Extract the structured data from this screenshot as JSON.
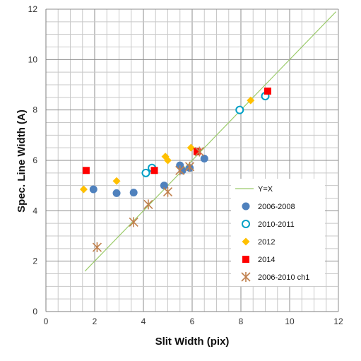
{
  "chart_data": {
    "type": "scatter",
    "title": "",
    "xlabel": "Slit Width (pix)",
    "ylabel": "Spec. Line Width (A)",
    "xlim": [
      0,
      12
    ],
    "ylim": [
      0,
      12
    ],
    "xticks": [
      0,
      2,
      4,
      6,
      8,
      10,
      12
    ],
    "yticks": [
      0,
      2,
      4,
      6,
      8,
      10,
      12
    ],
    "minor_step": 0.5,
    "grid": true,
    "legend_position": "lower-right",
    "series": [
      {
        "name": "Y=X",
        "kind": "line",
        "color": "#9BCB6A",
        "points": [
          [
            1.6,
            1.6
          ],
          [
            11.9,
            11.9
          ]
        ]
      },
      {
        "name": "2006-2008",
        "marker": "filled-circle",
        "color": "#4F81BD",
        "points": [
          [
            1.95,
            4.85
          ],
          [
            2.9,
            4.7
          ],
          [
            3.6,
            4.72
          ],
          [
            4.85,
            5.0
          ],
          [
            5.5,
            5.8
          ],
          [
            5.6,
            5.6
          ],
          [
            5.9,
            5.7
          ],
          [
            6.5,
            6.07
          ]
        ]
      },
      {
        "name": "2010-2011",
        "marker": "open-circle",
        "color": "#00A0C6",
        "points": [
          [
            4.1,
            5.5
          ],
          [
            4.35,
            5.7
          ],
          [
            7.95,
            8.0
          ],
          [
            9.0,
            8.55
          ]
        ]
      },
      {
        "name": "2012",
        "marker": "diamond",
        "color": "#FFC000",
        "points": [
          [
            1.55,
            4.85
          ],
          [
            2.9,
            5.18
          ],
          [
            4.9,
            6.15
          ],
          [
            5.0,
            6.0
          ],
          [
            5.95,
            6.5
          ],
          [
            8.4,
            8.38
          ]
        ]
      },
      {
        "name": "2014",
        "marker": "square",
        "color": "#FF0000",
        "points": [
          [
            1.65,
            5.6
          ],
          [
            4.45,
            5.6
          ],
          [
            6.2,
            6.35
          ],
          [
            9.1,
            8.75
          ]
        ]
      },
      {
        "name": "2006-2010 ch1",
        "marker": "asterisk",
        "color": "#C0804D",
        "points": [
          [
            2.1,
            2.55
          ],
          [
            3.6,
            3.55
          ],
          [
            4.2,
            4.25
          ],
          [
            5.0,
            4.75
          ],
          [
            5.5,
            5.6
          ],
          [
            5.9,
            5.75
          ],
          [
            6.3,
            6.35
          ]
        ]
      }
    ]
  }
}
